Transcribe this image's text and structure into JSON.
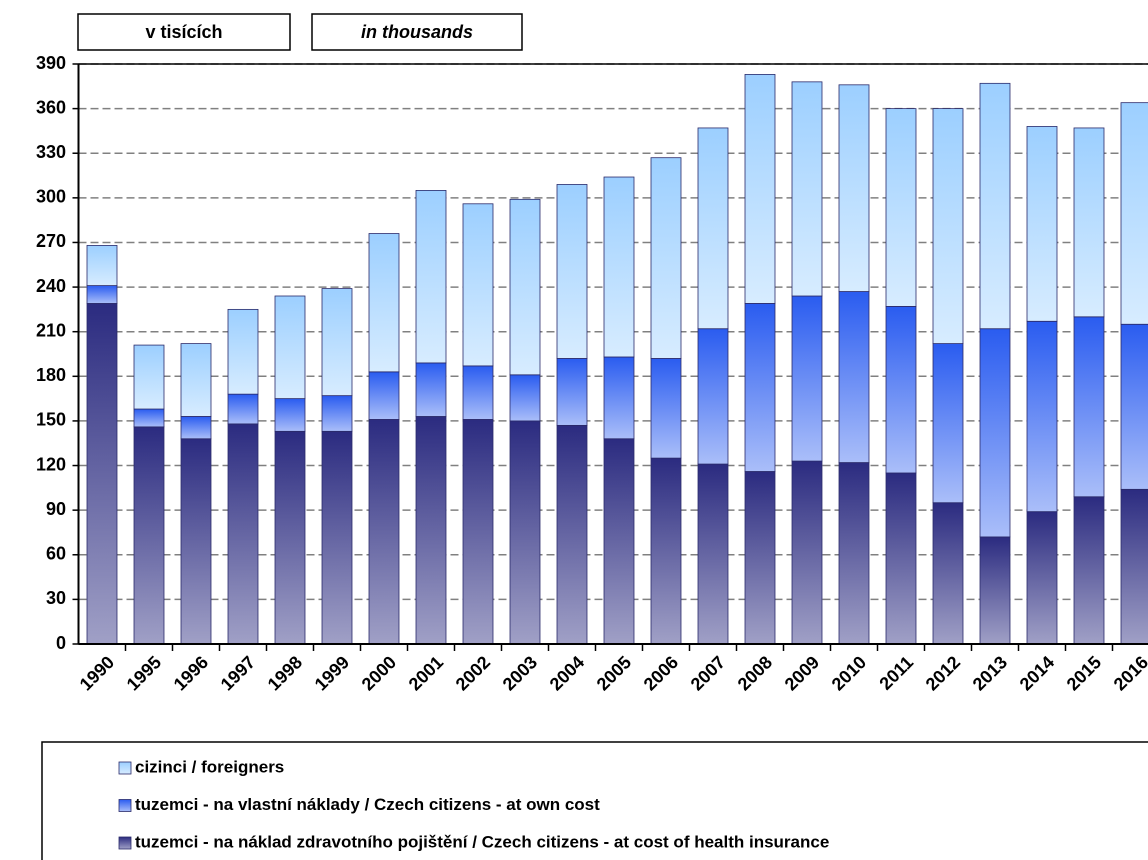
{
  "chart_data": {
    "type": "stacked_bar",
    "annotations": [
      "v tisících",
      "in thousands"
    ],
    "categories": [
      "1990",
      "1995",
      "1996",
      "1997",
      "1998",
      "1999",
      "2000",
      "2001",
      "2002",
      "2003",
      "2004",
      "2005",
      "2006",
      "2007",
      "2008",
      "2009",
      "2010",
      "2011",
      "2012",
      "2013",
      "2014",
      "2015",
      "2016"
    ],
    "series": [
      {
        "name": "tuzemci - na náklad zdravotního pojištění / Czech citizens - at cost of health insurance",
        "color": "#2b2b80",
        "values": [
          229,
          146,
          138,
          148,
          143,
          143,
          151,
          153,
          151,
          150,
          147,
          138,
          125,
          121,
          116,
          123,
          122,
          115,
          95,
          72,
          89,
          99,
          104
        ]
      },
      {
        "name": "tuzemci - na vlastní náklady / Czech citizens - at own cost",
        "color": "#2a5cf0",
        "values": [
          12,
          12,
          15,
          20,
          22,
          24,
          32,
          36,
          36,
          31,
          45,
          55,
          67,
          91,
          113,
          111,
          115,
          112,
          107,
          140,
          128,
          121,
          111
        ]
      },
      {
        "name": "cizinci / foreigners",
        "color": "#9ccfff",
        "values": [
          27,
          43,
          49,
          57,
          69,
          72,
          93,
          116,
          109,
          118,
          117,
          121,
          135,
          135,
          154,
          144,
          139,
          133,
          158,
          165,
          131,
          127,
          149
        ]
      }
    ],
    "ylim": [
      0,
      390
    ],
    "yticks": [
      0,
      30,
      60,
      90,
      120,
      150,
      180,
      210,
      240,
      270,
      300,
      330,
      360,
      390
    ],
    "grid": true
  }
}
